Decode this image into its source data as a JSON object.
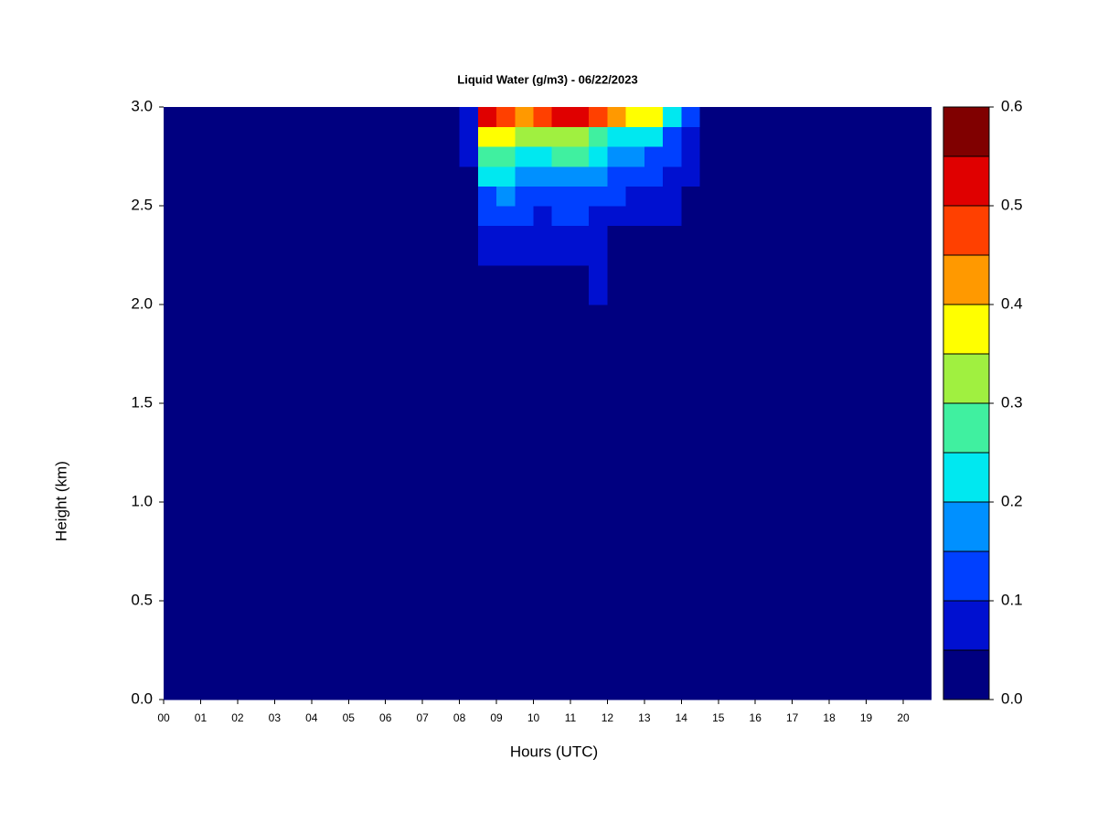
{
  "chart_data": {
    "type": "contour",
    "title": "Liquid Water (g/m3) - 06/22/2023",
    "xlabel": "Hours (UTC)",
    "ylabel": "Height (km)",
    "xlim": [
      0,
      20.75
    ],
    "ylim": [
      0,
      3
    ],
    "xticks": [
      {
        "value": 0,
        "label": "00"
      },
      {
        "value": 1,
        "label": "01"
      },
      {
        "value": 2,
        "label": "02"
      },
      {
        "value": 3,
        "label": "03"
      },
      {
        "value": 4,
        "label": "04"
      },
      {
        "value": 5,
        "label": "05"
      },
      {
        "value": 6,
        "label": "06"
      },
      {
        "value": 7,
        "label": "07"
      },
      {
        "value": 8,
        "label": "08"
      },
      {
        "value": 9,
        "label": "09"
      },
      {
        "value": 10,
        "label": "10"
      },
      {
        "value": 11,
        "label": "11"
      },
      {
        "value": 12,
        "label": "12"
      },
      {
        "value": 13,
        "label": "13"
      },
      {
        "value": 14,
        "label": "14"
      },
      {
        "value": 15,
        "label": "15"
      },
      {
        "value": 16,
        "label": "16"
      },
      {
        "value": 17,
        "label": "17"
      },
      {
        "value": 18,
        "label": "18"
      },
      {
        "value": 19,
        "label": "19"
      },
      {
        "value": 20,
        "label": "20"
      }
    ],
    "yticks": [
      {
        "value": 0,
        "label": "0.0"
      },
      {
        "value": 0.5,
        "label": "0.5"
      },
      {
        "value": 1,
        "label": "1.0"
      },
      {
        "value": 1.5,
        "label": "1.5"
      },
      {
        "value": 2,
        "label": "2.0"
      },
      {
        "value": 2.5,
        "label": "2.5"
      },
      {
        "value": 3,
        "label": "3.0"
      }
    ],
    "x": [
      0,
      7.5,
      8,
      8.5,
      9,
      9.5,
      10,
      10.5,
      11,
      11.5,
      12,
      12.5,
      13,
      13.5,
      14,
      14.5,
      20.75
    ],
    "y": [
      0,
      2.0,
      2.2,
      2.4,
      2.5,
      2.6,
      2.7,
      2.8,
      2.9,
      3.0
    ],
    "z": [
      [
        0.01,
        0.01,
        0.01,
        0.01,
        0.01,
        0.01,
        0.01,
        0.01,
        0.01,
        0.01,
        0.01,
        0.01,
        0.01,
        0.01,
        0.01,
        0.01
      ],
      [
        0.01,
        0.01,
        0.01,
        0.02,
        0.02,
        0.02,
        0.02,
        0.02,
        0.02,
        0.06,
        0.02,
        0.01,
        0.01,
        0.01,
        0.01,
        0.01
      ],
      [
        0.01,
        0.01,
        0.01,
        0.06,
        0.07,
        0.06,
        0.06,
        0.08,
        0.08,
        0.07,
        0.03,
        0.02,
        0.02,
        0.02,
        0.01,
        0.01
      ],
      [
        0.01,
        0.01,
        0.02,
        0.1,
        0.12,
        0.1,
        0.09,
        0.11,
        0.11,
        0.09,
        0.07,
        0.06,
        0.06,
        0.06,
        0.02,
        0.01
      ],
      [
        0.01,
        0.01,
        0.02,
        0.13,
        0.16,
        0.14,
        0.12,
        0.14,
        0.14,
        0.12,
        0.1,
        0.09,
        0.08,
        0.07,
        0.02,
        0.01
      ],
      [
        0.01,
        0.01,
        0.03,
        0.2,
        0.22,
        0.19,
        0.16,
        0.19,
        0.19,
        0.16,
        0.13,
        0.12,
        0.11,
        0.08,
        0.06,
        0.01
      ],
      [
        0.01,
        0.01,
        0.05,
        0.26,
        0.28,
        0.24,
        0.22,
        0.25,
        0.25,
        0.21,
        0.17,
        0.15,
        0.14,
        0.11,
        0.07,
        0.01
      ],
      [
        0.01,
        0.01,
        0.06,
        0.38,
        0.36,
        0.31,
        0.3,
        0.32,
        0.32,
        0.28,
        0.24,
        0.22,
        0.2,
        0.14,
        0.08,
        0.02
      ],
      [
        0.01,
        0.02,
        0.07,
        0.52,
        0.47,
        0.42,
        0.46,
        0.5,
        0.52,
        0.45,
        0.4,
        0.37,
        0.36,
        0.22,
        0.1,
        0.02
      ]
    ],
    "levels": [
      0,
      0.05,
      0.1,
      0.15,
      0.2,
      0.25,
      0.3,
      0.35,
      0.4,
      0.45,
      0.5,
      0.55,
      0.6
    ],
    "colors": [
      "#000080",
      "#0010d0",
      "#0040ff",
      "#0090ff",
      "#00e8f0",
      "#40f0a0",
      "#a0f040",
      "#ffff00",
      "#ff9900",
      "#ff4000",
      "#e00000",
      "#800000"
    ],
    "colorbar_ticks": [
      {
        "value": 0,
        "label": "0.0"
      },
      {
        "value": 0.1,
        "label": "0.1"
      },
      {
        "value": 0.2,
        "label": "0.2"
      },
      {
        "value": 0.3,
        "label": "0.3"
      },
      {
        "value": 0.4,
        "label": "0.4"
      },
      {
        "value": 0.5,
        "label": "0.5"
      },
      {
        "value": 0.6,
        "label": "0.6"
      }
    ]
  }
}
